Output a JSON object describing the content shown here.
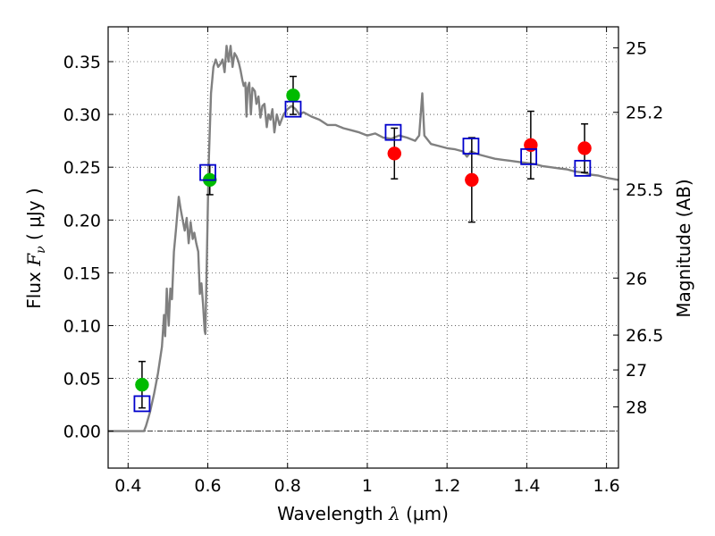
{
  "chart_data": {
    "type": "scatter",
    "xlabel": "Wavelength",
    "xlabel_symbol": "λ",
    "xlabel_unit": "(μm)",
    "ylabel": "Flux",
    "ylabel_symbol": "F",
    "ylabel_subscript": "ν",
    "ylabel_unit": "( μJy )",
    "y2label": "Magnitude (AB)",
    "xlim": [
      0.35,
      1.63
    ],
    "ylim": [
      -0.035,
      0.383
    ],
    "grid": true,
    "xticks": [
      0.4,
      0.6,
      0.8,
      1.0,
      1.2,
      1.4,
      1.6
    ],
    "xtick_labels": [
      "0.4",
      "0.6",
      "0.8",
      "1",
      "1.2",
      "1.4",
      "1.6"
    ],
    "yticks": [
      0.0,
      0.05,
      0.1,
      0.15,
      0.2,
      0.25,
      0.3,
      0.35
    ],
    "ytick_labels": [
      "0.00",
      "0.05",
      "0.10",
      "0.15",
      "0.20",
      "0.25",
      "0.30",
      "0.35"
    ],
    "y2ticks": [
      {
        "label": "25",
        "flux": 0.363
      },
      {
        "label": "25.2",
        "flux": 0.302
      },
      {
        "label": "25.5",
        "flux": 0.229
      },
      {
        "label": "26",
        "flux": 0.145
      },
      {
        "label": "26.5",
        "flux": 0.091
      },
      {
        "label": "27",
        "flux": 0.058
      },
      {
        "label": "28",
        "flux": 0.023
      }
    ],
    "series": [
      {
        "name": "model SED",
        "kind": "line",
        "color": "#808080",
        "points": [
          [
            0.35,
            0.0
          ],
          [
            0.43,
            0.0
          ],
          [
            0.44,
            0.0
          ],
          [
            0.445,
            0.005
          ],
          [
            0.455,
            0.018
          ],
          [
            0.465,
            0.035
          ],
          [
            0.475,
            0.055
          ],
          [
            0.485,
            0.08
          ],
          [
            0.49,
            0.11
          ],
          [
            0.493,
            0.09
          ],
          [
            0.497,
            0.135
          ],
          [
            0.502,
            0.1
          ],
          [
            0.506,
            0.135
          ],
          [
            0.51,
            0.125
          ],
          [
            0.515,
            0.17
          ],
          [
            0.52,
            0.19
          ],
          [
            0.527,
            0.222
          ],
          [
            0.532,
            0.21
          ],
          [
            0.537,
            0.2
          ],
          [
            0.542,
            0.19
          ],
          [
            0.547,
            0.202
          ],
          [
            0.552,
            0.178
          ],
          [
            0.557,
            0.198
          ],
          [
            0.562,
            0.182
          ],
          [
            0.566,
            0.188
          ],
          [
            0.571,
            0.178
          ],
          [
            0.576,
            0.17
          ],
          [
            0.58,
            0.13
          ],
          [
            0.584,
            0.14
          ],
          [
            0.588,
            0.12
          ],
          [
            0.592,
            0.095
          ],
          [
            0.594,
            0.092
          ],
          [
            0.598,
            0.17
          ],
          [
            0.602,
            0.25
          ],
          [
            0.608,
            0.32
          ],
          [
            0.614,
            0.345
          ],
          [
            0.62,
            0.352
          ],
          [
            0.626,
            0.345
          ],
          [
            0.632,
            0.348
          ],
          [
            0.637,
            0.352
          ],
          [
            0.642,
            0.34
          ],
          [
            0.647,
            0.365
          ],
          [
            0.652,
            0.35
          ],
          [
            0.657,
            0.365
          ],
          [
            0.662,
            0.345
          ],
          [
            0.667,
            0.358
          ],
          [
            0.672,
            0.355
          ],
          [
            0.677,
            0.35
          ],
          [
            0.682,
            0.342
          ],
          [
            0.687,
            0.332
          ],
          [
            0.69,
            0.327
          ],
          [
            0.694,
            0.33
          ],
          [
            0.697,
            0.298
          ],
          [
            0.7,
            0.325
          ],
          [
            0.704,
            0.33
          ],
          [
            0.708,
            0.3
          ],
          [
            0.712,
            0.325
          ],
          [
            0.718,
            0.322
          ],
          [
            0.722,
            0.31
          ],
          [
            0.727,
            0.317
          ],
          [
            0.732,
            0.297
          ],
          [
            0.737,
            0.308
          ],
          [
            0.742,
            0.31
          ],
          [
            0.748,
            0.288
          ],
          [
            0.752,
            0.3
          ],
          [
            0.757,
            0.295
          ],
          [
            0.762,
            0.305
          ],
          [
            0.767,
            0.283
          ],
          [
            0.773,
            0.3
          ],
          [
            0.78,
            0.29
          ],
          [
            0.79,
            0.3
          ],
          [
            0.8,
            0.305
          ],
          [
            0.81,
            0.308
          ],
          [
            0.82,
            0.305
          ],
          [
            0.83,
            0.3
          ],
          [
            0.84,
            0.302
          ],
          [
            0.86,
            0.298
          ],
          [
            0.88,
            0.295
          ],
          [
            0.9,
            0.29
          ],
          [
            0.92,
            0.29
          ],
          [
            0.94,
            0.287
          ],
          [
            0.96,
            0.285
          ],
          [
            0.98,
            0.283
          ],
          [
            1.0,
            0.28
          ],
          [
            1.02,
            0.282
          ],
          [
            1.04,
            0.278
          ],
          [
            1.06,
            0.277
          ],
          [
            1.08,
            0.28
          ],
          [
            1.1,
            0.278
          ],
          [
            1.12,
            0.275
          ],
          [
            1.13,
            0.28
          ],
          [
            1.138,
            0.32
          ],
          [
            1.143,
            0.28
          ],
          [
            1.16,
            0.272
          ],
          [
            1.18,
            0.27
          ],
          [
            1.2,
            0.268
          ],
          [
            1.22,
            0.267
          ],
          [
            1.24,
            0.265
          ],
          [
            1.25,
            0.26
          ],
          [
            1.26,
            0.265
          ],
          [
            1.28,
            0.262
          ],
          [
            1.3,
            0.26
          ],
          [
            1.32,
            0.258
          ],
          [
            1.34,
            0.257
          ],
          [
            1.36,
            0.256
          ],
          [
            1.38,
            0.255
          ],
          [
            1.4,
            0.254
          ],
          [
            1.42,
            0.253
          ],
          [
            1.44,
            0.251
          ],
          [
            1.46,
            0.25
          ],
          [
            1.48,
            0.249
          ],
          [
            1.5,
            0.248
          ],
          [
            1.52,
            0.246
          ],
          [
            1.54,
            0.245
          ],
          [
            1.56,
            0.243
          ],
          [
            1.58,
            0.242
          ],
          [
            1.6,
            0.24
          ],
          [
            1.63,
            0.238
          ]
        ]
      },
      {
        "name": "observed (green)",
        "kind": "markers",
        "marker": "circle",
        "color": "#00bb00",
        "points": [
          {
            "x": 0.435,
            "y": 0.044,
            "err": 0.022
          },
          {
            "x": 0.605,
            "y": 0.238,
            "err": 0.014
          },
          {
            "x": 0.814,
            "y": 0.318,
            "err": 0.018
          }
        ]
      },
      {
        "name": "observed (red)",
        "kind": "markers",
        "marker": "circle",
        "color": "#ff0000",
        "points": [
          {
            "x": 1.068,
            "y": 0.263,
            "err": 0.024
          },
          {
            "x": 1.262,
            "y": 0.238,
            "err": 0.04
          },
          {
            "x": 1.41,
            "y": 0.271,
            "err": 0.032
          },
          {
            "x": 1.545,
            "y": 0.268,
            "err": 0.023
          }
        ]
      },
      {
        "name": "model photometry",
        "kind": "markers",
        "marker": "square-open",
        "color": "#0000cc",
        "points": [
          {
            "x": 0.435,
            "y": 0.026
          },
          {
            "x": 0.6,
            "y": 0.245
          },
          {
            "x": 0.814,
            "y": 0.305
          },
          {
            "x": 1.065,
            "y": 0.283
          },
          {
            "x": 1.26,
            "y": 0.27
          },
          {
            "x": 1.405,
            "y": 0.26
          },
          {
            "x": 1.54,
            "y": 0.249
          }
        ]
      }
    ]
  }
}
